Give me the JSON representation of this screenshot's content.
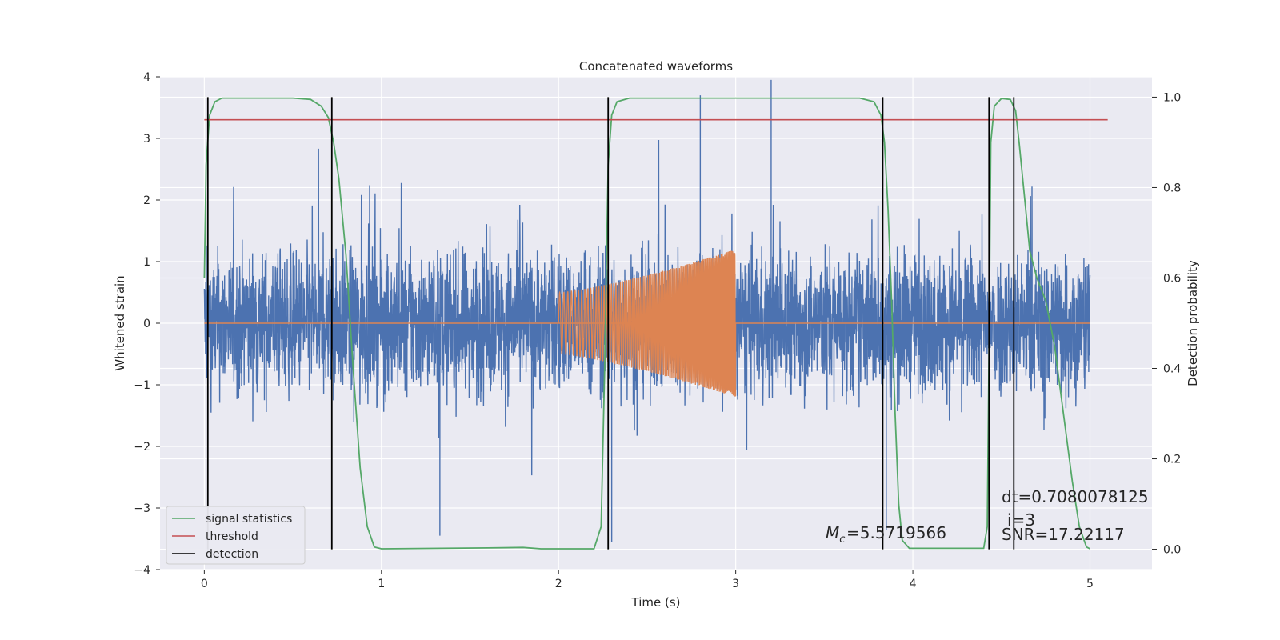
{
  "chart_data": {
    "type": "line",
    "title": "Concatenated waveforms",
    "xlabel": "Time (s)",
    "ylabel": "Whitened strain",
    "y2label": "Detection probability",
    "xlim": [
      -0.25,
      5.35
    ],
    "ylim": [
      -4.0,
      4.0
    ],
    "y2lim": [
      -0.045,
      1.045
    ],
    "x_ticks": [
      0,
      1,
      2,
      3,
      4,
      5
    ],
    "y_ticks": [
      -4,
      -3,
      -2,
      -1,
      0,
      1,
      2,
      3,
      4
    ],
    "y2_ticks": [
      0.0,
      0.2,
      0.4,
      0.6,
      0.8,
      1.0
    ],
    "x_tick_labels": [
      "0",
      "1",
      "2",
      "3",
      "4",
      "5"
    ],
    "y_tick_labels": [
      "−4",
      "−3",
      "−2",
      "−1",
      "0",
      "1",
      "2",
      "3",
      "4"
    ],
    "y2_tick_labels": [
      "0.0",
      "0.2",
      "0.4",
      "0.6",
      "0.8",
      "1.0"
    ],
    "grid": true,
    "legend_position": "lower-left",
    "colors": {
      "background": "#eaeaf2",
      "grid": "#ffffff",
      "strain": "#4c72b0",
      "template": "#dd8452",
      "signal_statistics": "#55a868",
      "threshold": "#c44e52",
      "detection": "#000000"
    },
    "series": [
      {
        "key": "strain",
        "axis": "left",
        "x_range": [
          0.0,
          5.0
        ],
        "amplitude_envelope": 2.2,
        "peak_max": 3.95,
        "peak_min": -3.45
      },
      {
        "key": "template",
        "axis": "left",
        "x_range": [
          2.0,
          3.0
        ],
        "amplitude_start": 0.5,
        "amplitude_end": 1.2
      },
      {
        "name": "signal statistics",
        "axis": "right",
        "points": [
          [
            0.0,
            0.6
          ],
          [
            0.01,
            0.85
          ],
          [
            0.03,
            0.96
          ],
          [
            0.06,
            0.99
          ],
          [
            0.1,
            0.998
          ],
          [
            0.5,
            0.998
          ],
          [
            0.6,
            0.995
          ],
          [
            0.66,
            0.98
          ],
          [
            0.7,
            0.955
          ],
          [
            0.73,
            0.9
          ],
          [
            0.76,
            0.82
          ],
          [
            0.8,
            0.65
          ],
          [
            0.84,
            0.4
          ],
          [
            0.88,
            0.18
          ],
          [
            0.92,
            0.05
          ],
          [
            0.96,
            0.005
          ],
          [
            1.0,
            0.001
          ],
          [
            1.6,
            0.003
          ],
          [
            1.8,
            0.004
          ],
          [
            1.9,
            0.001
          ],
          [
            2.2,
            0.001
          ],
          [
            2.24,
            0.05
          ],
          [
            2.26,
            0.4
          ],
          [
            2.28,
            0.85
          ],
          [
            2.3,
            0.96
          ],
          [
            2.33,
            0.99
          ],
          [
            2.4,
            0.998
          ],
          [
            3.7,
            0.998
          ],
          [
            3.78,
            0.99
          ],
          [
            3.82,
            0.96
          ],
          [
            3.84,
            0.9
          ],
          [
            3.86,
            0.75
          ],
          [
            3.88,
            0.55
          ],
          [
            3.9,
            0.3
          ],
          [
            3.92,
            0.1
          ],
          [
            3.94,
            0.02
          ],
          [
            3.98,
            0.002
          ],
          [
            4.4,
            0.002
          ],
          [
            4.42,
            0.05
          ],
          [
            4.43,
            0.45
          ],
          [
            4.44,
            0.9
          ],
          [
            4.46,
            0.98
          ],
          [
            4.5,
            0.997
          ],
          [
            4.55,
            0.995
          ],
          [
            4.58,
            0.97
          ],
          [
            4.6,
            0.9
          ],
          [
            4.63,
            0.78
          ],
          [
            4.66,
            0.66
          ],
          [
            4.7,
            0.6
          ],
          [
            4.75,
            0.55
          ],
          [
            4.8,
            0.45
          ],
          [
            4.85,
            0.3
          ],
          [
            4.9,
            0.15
          ],
          [
            4.94,
            0.05
          ],
          [
            4.98,
            0.005
          ],
          [
            5.0,
            0.001
          ]
        ]
      },
      {
        "name": "threshold",
        "axis": "right",
        "value": 0.95,
        "x_range": [
          0.0,
          5.1
        ]
      },
      {
        "name": "detection",
        "axis": "right",
        "x": [
          0.02,
          0.72,
          2.28,
          3.83,
          4.43,
          4.57
        ],
        "y_range": [
          0.0,
          1.0
        ]
      }
    ],
    "annotations": {
      "mc_label": "=5.5719566",
      "dt_label": "dt=0.7080078125",
      "i_label": "i=3",
      "snr_label": "SNR=17.22117"
    }
  }
}
